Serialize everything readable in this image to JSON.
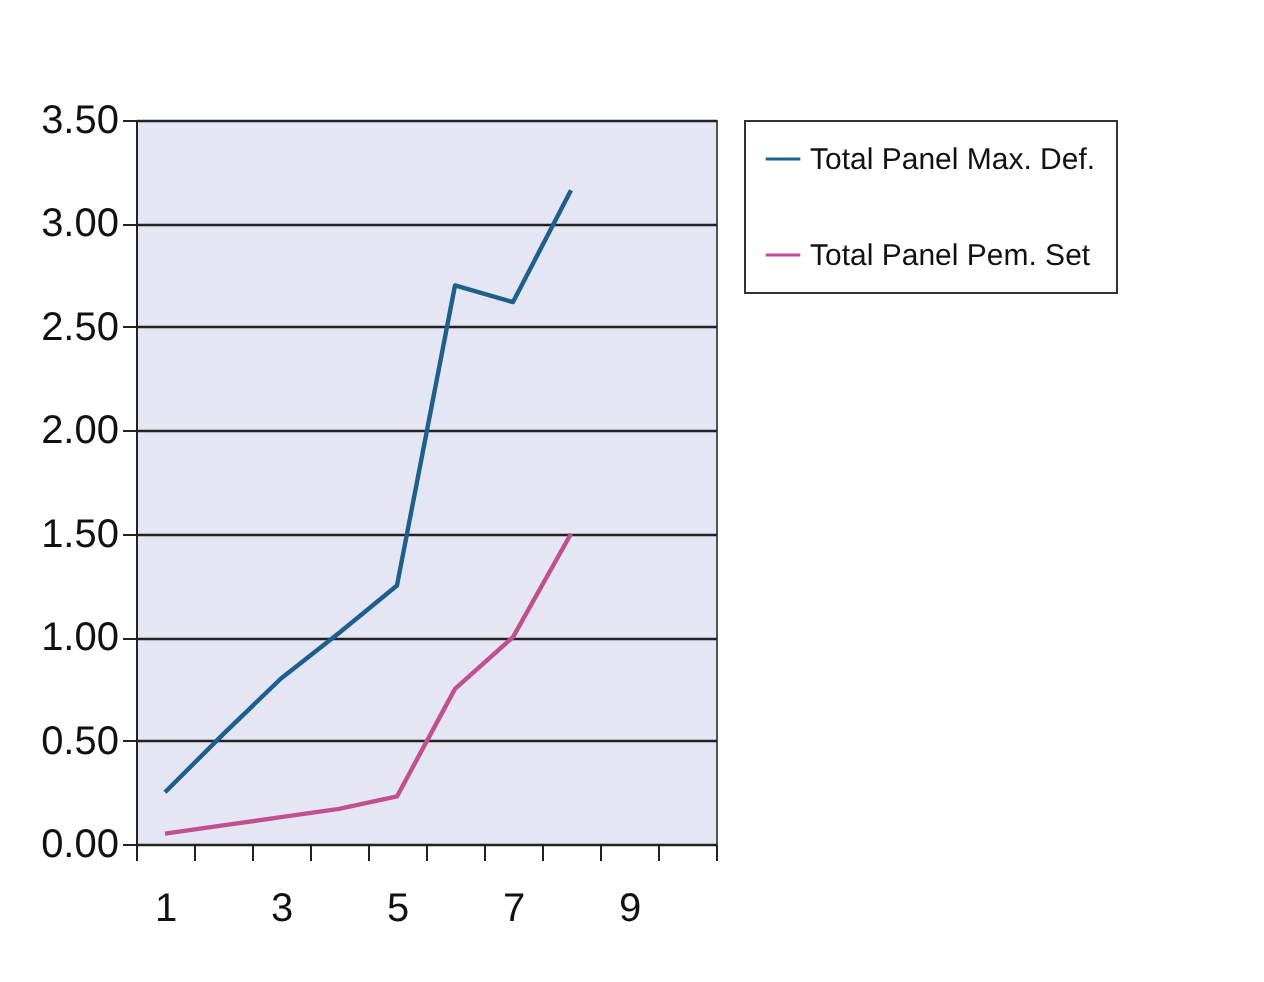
{
  "chart_data": {
    "type": "line",
    "categories": [
      "1",
      null,
      "3",
      null,
      "5",
      null,
      "7",
      null,
      "9",
      null
    ],
    "series": [
      {
        "name": "Total Panel Max. Def.",
        "color": "#1f5f8b",
        "values": [
          0.25,
          0.53,
          0.8,
          1.02,
          1.25,
          2.7,
          2.62,
          3.16,
          null,
          null
        ]
      },
      {
        "name": "Total Panel Pem. Set",
        "color": "#c0508f",
        "values": [
          0.05,
          0.09,
          0.13,
          0.17,
          0.23,
          0.75,
          1.0,
          1.5,
          null,
          null
        ]
      }
    ],
    "ylim": [
      0,
      3.5
    ],
    "yticks": [
      {
        "value": 0,
        "label": "0.00"
      },
      {
        "value": 0.5,
        "label": "0.50"
      },
      {
        "value": 1,
        "label": "1.00"
      },
      {
        "value": 1.5,
        "label": "1.50"
      },
      {
        "value": 2,
        "label": "2.00"
      },
      {
        "value": 2.5,
        "label": "2.50"
      },
      {
        "value": 3,
        "label": "3.00"
      },
      {
        "value": 3.5,
        "label": "3.50"
      }
    ],
    "grid": "y",
    "legend": "right",
    "marker": "none",
    "line_style": "solid"
  }
}
